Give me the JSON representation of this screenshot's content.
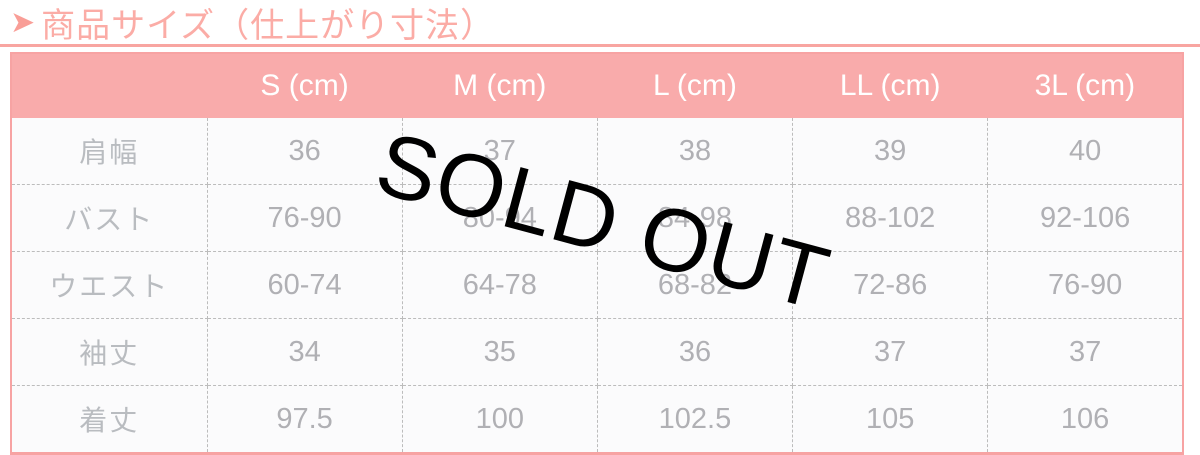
{
  "title": {
    "arrow": "➤",
    "text": "商品サイズ（仕上がり寸法）"
  },
  "table": {
    "corner": "",
    "columns": [
      "S (cm)",
      "M (cm)",
      "L (cm)",
      "LL (cm)",
      "3L (cm)"
    ],
    "rows": [
      {
        "label": "肩幅",
        "values": [
          "36",
          "37",
          "38",
          "39",
          "40"
        ]
      },
      {
        "label": "バスト",
        "values": [
          "76-90",
          "80-94",
          "84-98",
          "88-102",
          "92-106"
        ]
      },
      {
        "label": "ウエスト",
        "values": [
          "60-74",
          "64-78",
          "68-82",
          "72-86",
          "76-90"
        ]
      },
      {
        "label": "袖丈",
        "values": [
          "34",
          "35",
          "36",
          "37",
          "37"
        ]
      },
      {
        "label": "着丈",
        "values": [
          "97.5",
          "100",
          "102.5",
          "105",
          "106"
        ]
      }
    ]
  },
  "overlay": {
    "text": "SOLD OUT"
  },
  "colors": {
    "accent_pink": "#f9abab",
    "title_pink": "#fbaca6",
    "border_pink": "#f7a3a3",
    "cell_text_gray": "#b0b0b4",
    "dashed_border_gray": "#bcbcbc",
    "soldout_black": "#000000"
  }
}
